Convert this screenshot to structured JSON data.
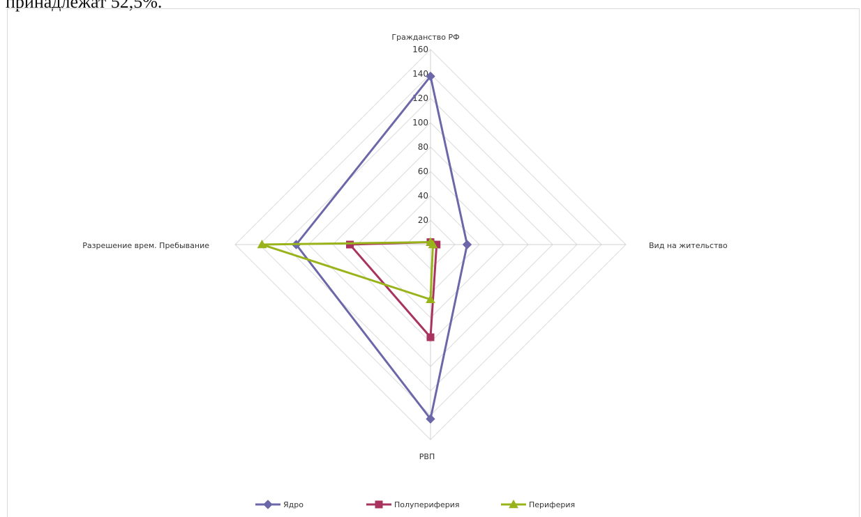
{
  "page": {
    "caption": "принадлежат 52,5%."
  },
  "chart_data": {
    "type": "radar",
    "axes": [
      "Гражданство РФ",
      "Вид на жительство",
      "РВП",
      "Разрешение врем. Пребывание"
    ],
    "ticks": [
      20,
      40,
      60,
      80,
      100,
      120,
      140,
      160
    ],
    "tick_labels": [
      "20",
      "40",
      "60",
      "80",
      "100",
      "120",
      "140",
      "160"
    ],
    "range": [
      0,
      160
    ],
    "grid": true,
    "legend_position": "bottom",
    "series": [
      {
        "name": "Ядро",
        "values": [
          138,
          30,
          143,
          110
        ],
        "color": "#6b67a8",
        "marker": "diamond"
      },
      {
        "name": "Полупериферия",
        "values": [
          2,
          5,
          76,
          66
        ],
        "color": "#a8335f",
        "marker": "square"
      },
      {
        "name": "Периферия",
        "values": [
          2,
          2,
          45,
          138
        ],
        "color": "#99b31a",
        "marker": "triangle"
      }
    ]
  }
}
